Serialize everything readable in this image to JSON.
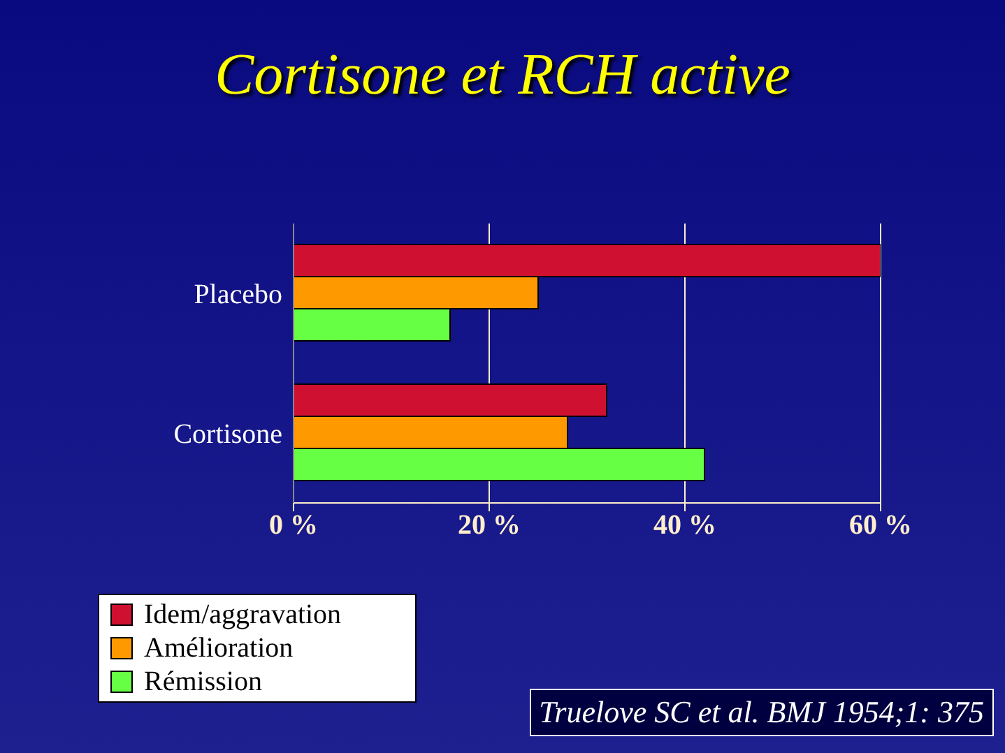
{
  "chart_data": {
    "type": "bar",
    "orientation": "horizontal",
    "title": "Cortisone et RCH active",
    "categories": [
      "Placebo",
      "Cortisone"
    ],
    "series": [
      {
        "name": "Idem/aggravation",
        "color": "#d01030",
        "values": [
          60,
          32
        ]
      },
      {
        "name": "Amélioration",
        "color": "#ff9900",
        "values": [
          25,
          28
        ]
      },
      {
        "name": "Rémission",
        "color": "#66ff44",
        "values": [
          16,
          42
        ]
      }
    ],
    "xlim": [
      0,
      60
    ],
    "xticks": [
      {
        "value": 0,
        "label": "0 %"
      },
      {
        "value": 20,
        "label": "20 %"
      },
      {
        "value": 40,
        "label": "40 %"
      },
      {
        "value": 60,
        "label": "60 %"
      }
    ],
    "grid": "x",
    "legend": "bottom left",
    "annotations": [
      "Truelove SC et al. BMJ 1954;1: 375"
    ]
  }
}
